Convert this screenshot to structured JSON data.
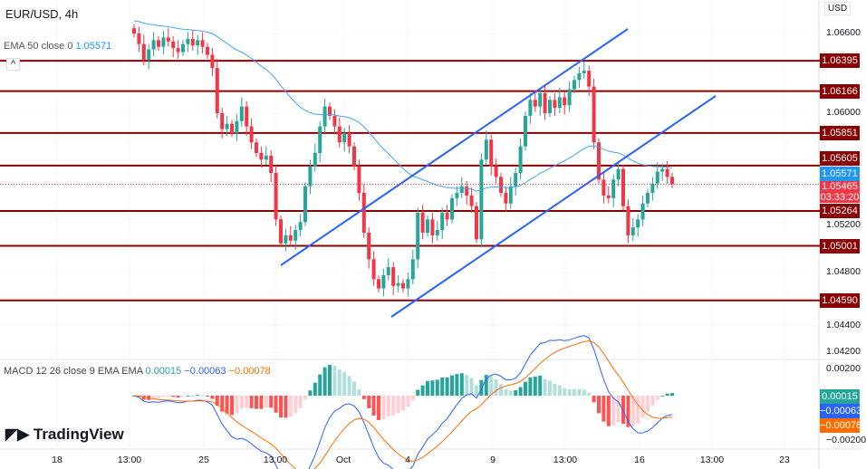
{
  "header": {
    "symbol": "EUR/USD, 4h",
    "currency": "USD"
  },
  "ema_legend": {
    "label": "EMA 50 close 0",
    "value": "1.05571"
  },
  "macd_legend": {
    "label": "MACD 12 26 close 9 EMA EMA",
    "hist": "0.00015",
    "macd": "−0.00063",
    "signal": "−0.00078"
  },
  "logo": "TradingView",
  "colors": {
    "up": "#26a69a",
    "down": "#f23645",
    "level": "#8b0000",
    "channel": "#2962ff",
    "ema": "#42a5f5",
    "macd": "#2962ff",
    "signal": "#ff6d00"
  },
  "chart_data": {
    "type": "candlestick",
    "price_ticks": [
      "1.06600",
      "1.06000",
      "1.05200",
      "1.04800",
      "1.04400",
      "1.04200"
    ],
    "macd_ticks": [
      "0.00200",
      "−0.00200"
    ],
    "x_ticks": [
      {
        "label": "18",
        "pos": 63
      },
      {
        "label": "13:00",
        "pos": 143
      },
      {
        "label": "25",
        "pos": 225
      },
      {
        "label": "13:00",
        "pos": 304
      },
      {
        "label": "Oct",
        "pos": 379
      },
      {
        "label": "4",
        "pos": 450
      },
      {
        "label": "9",
        "pos": 544
      },
      {
        "label": "13:00",
        "pos": 624
      },
      {
        "label": "16",
        "pos": 706
      },
      {
        "label": "13:00",
        "pos": 786
      },
      {
        "label": "23",
        "pos": 866
      }
    ],
    "levels": [
      "1.06395",
      "1.06166",
      "1.05851",
      "1.05605",
      "1.05264",
      "1.05001",
      "1.04590"
    ],
    "ema_value": "1.05571",
    "last_price": "1.05465",
    "countdown": "03:33:20",
    "closes": [
      1.066,
      1.0652,
      1.064,
      1.0648,
      1.0655,
      1.065,
      1.0657,
      1.0654,
      1.0649,
      1.0646,
      1.0652,
      1.0656,
      1.0651,
      1.0655,
      1.065,
      1.0644,
      1.0634,
      1.06,
      1.0588,
      1.0592,
      1.0585,
      1.0594,
      1.0605,
      1.059,
      1.0578,
      1.057,
      1.0565,
      1.0568,
      1.0555,
      1.052,
      1.0502,
      1.0508,
      1.0504,
      1.0512,
      1.0518,
      1.0545,
      1.056,
      1.057,
      1.059,
      1.0605,
      1.0598,
      1.059,
      1.0578,
      1.0585,
      1.0575,
      1.056,
      1.054,
      1.051,
      1.049,
      1.0475,
      1.0468,
      1.0478,
      1.0484,
      1.047,
      1.0472,
      1.0468,
      1.0475,
      1.049,
      1.0525,
      1.051,
      1.052,
      1.0508,
      1.0512,
      1.0525,
      1.052,
      1.0536,
      1.054,
      1.0545,
      1.0538,
      1.053,
      1.0505,
      1.0565,
      1.058,
      1.056,
      1.0552,
      1.054,
      1.0532,
      1.0545,
      1.0555,
      1.0575,
      1.0598,
      1.061,
      1.0605,
      1.0615,
      1.06,
      1.061,
      1.0604,
      1.0612,
      1.0606,
      1.0618,
      1.0625,
      1.063,
      1.0632,
      1.062,
      1.0578,
      1.055,
      1.0538,
      1.0536,
      1.055,
      1.0558,
      1.053,
      1.0508,
      1.0514,
      1.052,
      1.0532,
      1.054,
      1.0547,
      1.0556,
      1.0558,
      1.0552,
      1.05465
    ],
    "channel_lines": [
      [
        [
          "Sep 29",
          "1.0508"
        ],
        [
          "Oct 12",
          "1.0665"
        ]
      ],
      [
        [
          "Oct 3",
          "1.0460"
        ],
        [
          "Oct 18",
          "1.0611"
        ]
      ]
    ]
  }
}
